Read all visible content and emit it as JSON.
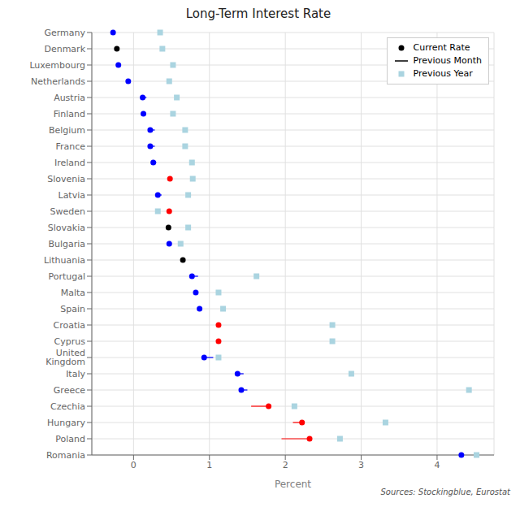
{
  "chart_data": {
    "type": "dot",
    "orientation": "horizontal",
    "title": "Long-Term Interest Rate",
    "x_label": "Percent",
    "annotations": [
      "Sources: Stockingblue, Eurostat"
    ],
    "categories": [
      "Germany",
      "Denmark",
      "Luxembourg",
      "Netherlands",
      "Austria",
      "Finland",
      "Belgium",
      "France",
      "Ireland",
      "Slovenia",
      "Latvia",
      "Sweden",
      "Slovakia",
      "Bulgaria",
      "Lithuania",
      "Portugal",
      "Malta",
      "Spain",
      "Croatia",
      "Cyprus",
      "United Kingdom",
      "Italy",
      "Greece",
      "Czechia",
      "Hungary",
      "Poland",
      "Romania"
    ],
    "series": [
      {
        "name": "Current Rate",
        "type": "scatter",
        "marker": "circle",
        "color": "black",
        "colors": [
          "blue",
          "black",
          "blue",
          "blue",
          "blue",
          "blue",
          "blue",
          "blue",
          "blue",
          "red",
          "blue",
          "red",
          "black",
          "blue",
          "black",
          "blue",
          "blue",
          "blue",
          "red",
          "red",
          "blue",
          "blue",
          "blue",
          "red",
          "red",
          "red",
          "blue"
        ],
        "values": [
          -0.27,
          -0.22,
          -0.2,
          -0.07,
          0.12,
          0.13,
          0.22,
          0.22,
          0.26,
          0.48,
          0.32,
          0.47,
          0.46,
          0.47,
          0.65,
          0.77,
          0.82,
          0.87,
          1.12,
          1.12,
          0.93,
          1.37,
          1.42,
          1.78,
          2.22,
          2.32,
          4.32
        ]
      },
      {
        "name": "Previous Month",
        "type": "line",
        "line_style": "solid",
        "color": "black",
        "colors": [
          "blue",
          "black",
          "blue",
          "blue",
          "blue",
          "blue",
          "blue",
          "blue",
          "blue",
          "red",
          "blue",
          "red",
          "black",
          "blue",
          "black",
          "blue",
          "blue",
          "blue",
          "red",
          "red",
          "blue",
          "blue",
          "blue",
          "red",
          "red",
          "red",
          "blue"
        ],
        "values": [
          -0.27,
          -0.22,
          -0.2,
          -0.05,
          0.17,
          0.15,
          0.28,
          0.28,
          0.3,
          0.48,
          0.37,
          0.47,
          0.46,
          0.5,
          0.65,
          0.85,
          0.82,
          0.9,
          1.12,
          1.12,
          1.05,
          1.45,
          1.5,
          1.55,
          2.1,
          1.95,
          4.32
        ]
      },
      {
        "name": "Previous Year",
        "type": "scatter",
        "marker": "square",
        "color": "#aad4e0",
        "values": [
          0.35,
          0.38,
          0.52,
          0.47,
          0.57,
          0.52,
          0.68,
          0.68,
          0.77,
          0.78,
          0.72,
          0.32,
          0.72,
          0.62,
          null,
          1.62,
          1.12,
          1.18,
          2.62,
          2.62,
          1.12,
          2.87,
          4.42,
          2.12,
          3.32,
          2.72,
          4.52
        ]
      }
    ],
    "xlim": [
      -0.55,
      4.75
    ],
    "xticks": [
      0,
      1,
      2,
      3,
      4
    ],
    "grid": true,
    "legend": "upper right"
  }
}
